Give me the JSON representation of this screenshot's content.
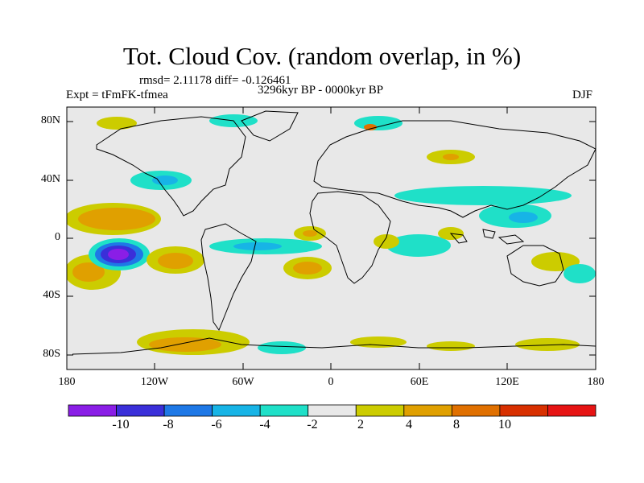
{
  "title": "Tot. Cloud Cov. (random overlap, in %)",
  "stats": "rmsd= 2.11178 diff= -0.126461",
  "experiment": "Expt = tFmFK-tfmea",
  "period": "3296kyr BP - 0000kyr BP",
  "season": "DJF",
  "lat_ticks": [
    "80N",
    "40N",
    "0",
    "40S",
    "80S"
  ],
  "lon_ticks": [
    "180",
    "120W",
    "60W",
    "0",
    "60E",
    "120E",
    "180"
  ],
  "colorbar": {
    "labels": [
      "-10",
      "-8",
      "-6",
      "-4",
      "-2",
      "2",
      "4",
      "8",
      "10"
    ],
    "colors": [
      "#8a1ee6",
      "#3a2fd9",
      "#1e78e6",
      "#17b4e6",
      "#1fe0c8",
      "#e8e8e8",
      "#cccc00",
      "#e0a000",
      "#e07000",
      "#d83000",
      "#e61414"
    ]
  }
}
